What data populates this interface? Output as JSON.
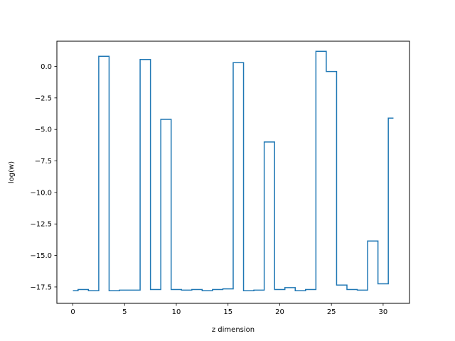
{
  "chart_data": {
    "type": "line",
    "drawstyle": "steps-mid",
    "title": "",
    "xlabel": "z dimension",
    "ylabel": "log(w)",
    "xlim": [
      -1.55,
      32.55
    ],
    "ylim": [
      -18.8,
      2.0
    ],
    "xticks": [
      0,
      5,
      10,
      15,
      20,
      25,
      30
    ],
    "xtick_labels": [
      "0",
      "5",
      "10",
      "15",
      "20",
      "25",
      "30"
    ],
    "yticks": [
      0.0,
      -2.5,
      -5.0,
      -7.5,
      -10.0,
      -12.5,
      -15.0,
      -17.5
    ],
    "ytick_labels": [
      "0.0",
      "−2.5",
      "−5.0",
      "−7.5",
      "−10.0",
      "−12.5",
      "−15.0",
      "−17.5"
    ],
    "grid": false,
    "color": "#1f77b4",
    "x": [
      0,
      1,
      2,
      3,
      4,
      5,
      6,
      7,
      8,
      9,
      10,
      11,
      12,
      13,
      14,
      15,
      16,
      17,
      18,
      19,
      20,
      21,
      22,
      23,
      24,
      25,
      26,
      27,
      28,
      29,
      30,
      31
    ],
    "values": [
      -17.8,
      -17.7,
      -17.8,
      0.8,
      -17.8,
      -17.75,
      -17.75,
      0.55,
      -17.7,
      -4.2,
      -17.7,
      -17.75,
      -17.7,
      -17.8,
      -17.7,
      -17.65,
      0.3,
      -17.8,
      -17.75,
      -6.0,
      -17.7,
      -17.55,
      -17.8,
      -17.7,
      1.2,
      -0.4,
      -17.35,
      -17.7,
      -17.75,
      -13.85,
      -17.25,
      -4.1
    ]
  }
}
